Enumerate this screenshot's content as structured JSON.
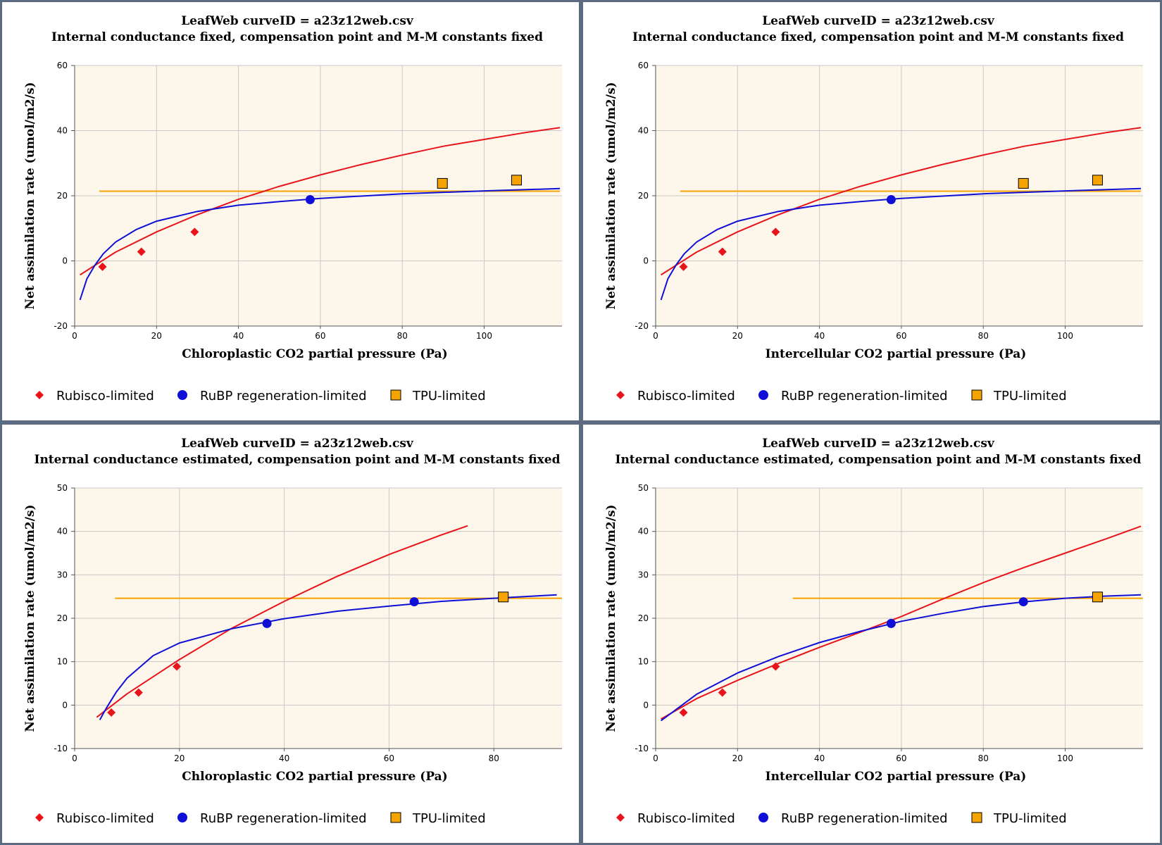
{
  "legend": [
    "Rubisco-limited",
    "RuBP regeneration-limited",
    "TPU-limited"
  ],
  "colors": {
    "rubisco": "#e8141b",
    "rubp": "#0f0fd6",
    "tpu": "#f5a300",
    "plot_bg": "#fdf6ea",
    "frame": "#5b6b82"
  },
  "chart_data": [
    {
      "type": "scatter",
      "title": "LeafWeb curveID = a23z12web.csv",
      "subtitle": "Internal conductance fixed, compensation point and M-M constants fixed",
      "xlabel": "Chloroplastic CO2 partial pressure (Pa)",
      "ylabel": "Net assimilation rate (umol/m2/s)",
      "xlim": [
        0,
        119
      ],
      "ylim": [
        -20,
        60
      ],
      "xticks": [
        0,
        20,
        40,
        60,
        80,
        100
      ],
      "yticks": [
        -20,
        0,
        20,
        40,
        60
      ],
      "grid": true,
      "legend_position": "bottom",
      "points": {
        "rubisco": [
          [
            6.8,
            -1.8
          ],
          [
            16.3,
            2.8
          ],
          [
            29.3,
            8.9
          ]
        ],
        "rubp": [
          [
            57.5,
            18.8
          ]
        ],
        "tpu": [
          [
            89.8,
            23.8
          ],
          [
            107.9,
            24.8
          ]
        ]
      },
      "lines": {
        "rubisco": [
          [
            1.3,
            -4.3
          ],
          [
            10,
            2.7
          ],
          [
            20,
            8.9
          ],
          [
            30,
            14.2
          ],
          [
            40,
            18.9
          ],
          [
            50,
            22.9
          ],
          [
            60,
            26.4
          ],
          [
            70,
            29.6
          ],
          [
            80,
            32.5
          ],
          [
            90,
            35.2
          ],
          [
            100,
            37.3
          ],
          [
            110,
            39.4
          ],
          [
            118.5,
            40.9
          ]
        ],
        "rubp": [
          [
            1.3,
            -12
          ],
          [
            3,
            -5.5
          ],
          [
            5,
            -1.2
          ],
          [
            7,
            2.2
          ],
          [
            10,
            5.8
          ],
          [
            15,
            9.6
          ],
          [
            20,
            12.2
          ],
          [
            30,
            15.2
          ],
          [
            40,
            17.1
          ],
          [
            50,
            18.2
          ],
          [
            60,
            19.2
          ],
          [
            80,
            20.6
          ],
          [
            100,
            21.5
          ],
          [
            118.5,
            22.2
          ]
        ],
        "tpu": [
          [
            6,
            21.4
          ],
          [
            118.5,
            21.4
          ]
        ]
      }
    },
    {
      "type": "scatter",
      "title": "LeafWeb curveID = a23z12web.csv",
      "subtitle": "Internal conductance fixed, compensation point and M-M constants fixed",
      "xlabel": "Intercellular CO2 partial pressure (Pa)",
      "ylabel": "Net assimilation rate (umol/m2/s)",
      "xlim": [
        0,
        119
      ],
      "ylim": [
        -20,
        60
      ],
      "xticks": [
        0,
        20,
        40,
        60,
        80,
        100
      ],
      "yticks": [
        -20,
        0,
        20,
        40,
        60
      ],
      "grid": true,
      "legend_position": "bottom",
      "points": {
        "rubisco": [
          [
            6.8,
            -1.8
          ],
          [
            16.3,
            2.8
          ],
          [
            29.3,
            8.9
          ]
        ],
        "rubp": [
          [
            57.5,
            18.8
          ]
        ],
        "tpu": [
          [
            89.8,
            23.8
          ],
          [
            107.9,
            24.8
          ]
        ]
      },
      "lines": {
        "rubisco": [
          [
            1.3,
            -4.3
          ],
          [
            10,
            2.7
          ],
          [
            20,
            8.9
          ],
          [
            30,
            14.2
          ],
          [
            40,
            18.9
          ],
          [
            50,
            22.9
          ],
          [
            60,
            26.4
          ],
          [
            70,
            29.6
          ],
          [
            80,
            32.5
          ],
          [
            90,
            35.2
          ],
          [
            100,
            37.3
          ],
          [
            110,
            39.4
          ],
          [
            118.5,
            40.9
          ]
        ],
        "rubp": [
          [
            1.3,
            -12
          ],
          [
            3,
            -5.5
          ],
          [
            5,
            -1.2
          ],
          [
            7,
            2.2
          ],
          [
            10,
            5.8
          ],
          [
            15,
            9.6
          ],
          [
            20,
            12.2
          ],
          [
            30,
            15.2
          ],
          [
            40,
            17.1
          ],
          [
            50,
            18.2
          ],
          [
            60,
            19.2
          ],
          [
            80,
            20.6
          ],
          [
            100,
            21.5
          ],
          [
            118.5,
            22.2
          ]
        ],
        "tpu": [
          [
            6,
            21.4
          ],
          [
            118.5,
            21.4
          ]
        ]
      }
    },
    {
      "type": "scatter",
      "title": "LeafWeb curveID = a23z12web.csv",
      "subtitle": "Internal conductance estimated, compensation point and M-M constants fixed",
      "xlabel": "Chloroplastic CO2 partial pressure (Pa)",
      "ylabel": "Net assimilation rate (umol/m2/s)",
      "xlim": [
        0,
        93
      ],
      "ylim": [
        -10,
        50
      ],
      "xticks": [
        0,
        20,
        40,
        60,
        80
      ],
      "yticks": [
        -10,
        0,
        10,
        20,
        30,
        40,
        50
      ],
      "grid": true,
      "legend_position": "bottom",
      "points": {
        "rubisco": [
          [
            7,
            -1.7
          ],
          [
            12.2,
            2.9
          ],
          [
            19.5,
            8.9
          ]
        ],
        "rubp": [
          [
            36.7,
            18.8
          ],
          [
            64.8,
            23.8
          ]
        ],
        "tpu": [
          [
            81.8,
            24.9
          ]
        ]
      },
      "lines": {
        "rubisco": [
          [
            4.2,
            -2.8
          ],
          [
            10,
            2.6
          ],
          [
            20,
            10.5
          ],
          [
            30,
            17.7
          ],
          [
            40,
            23.9
          ],
          [
            50,
            29.6
          ],
          [
            60,
            34.7
          ],
          [
            70,
            39.2
          ],
          [
            75,
            41.3
          ]
        ],
        "rubp": [
          [
            4.8,
            -3.4
          ],
          [
            6,
            -0.8
          ],
          [
            8,
            3.1
          ],
          [
            10,
            6.2
          ],
          [
            15,
            11.4
          ],
          [
            20,
            14.3
          ],
          [
            30,
            17.6
          ],
          [
            40,
            19.9
          ],
          [
            50,
            21.6
          ],
          [
            60,
            22.8
          ],
          [
            70,
            23.9
          ],
          [
            80,
            24.6
          ],
          [
            92,
            25.4
          ]
        ],
        "tpu": [
          [
            7.7,
            24.6
          ],
          [
            93,
            24.6
          ]
        ]
      }
    },
    {
      "type": "scatter",
      "title": "LeafWeb curveID = a23z12web.csv",
      "subtitle": "Internal conductance estimated, compensation point and M-M constants fixed",
      "xlabel": "Intercellular CO2 partial pressure (Pa)",
      "ylabel": "Net assimilation rate (umol/m2/s)",
      "xlim": [
        0,
        119
      ],
      "ylim": [
        -10,
        50
      ],
      "xticks": [
        0,
        20,
        40,
        60,
        80,
        100
      ],
      "yticks": [
        -10,
        0,
        10,
        20,
        30,
        40,
        50
      ],
      "grid": true,
      "legend_position": "bottom",
      "points": {
        "rubisco": [
          [
            6.8,
            -1.7
          ],
          [
            16.3,
            2.9
          ],
          [
            29.3,
            8.9
          ]
        ],
        "rubp": [
          [
            57.5,
            18.8
          ],
          [
            89.8,
            23.8
          ]
        ],
        "tpu": [
          [
            107.9,
            24.9
          ]
        ]
      },
      "lines": {
        "rubisco": [
          [
            1.3,
            -3.2
          ],
          [
            10,
            1.5
          ],
          [
            20,
            5.7
          ],
          [
            30,
            9.6
          ],
          [
            40,
            13.3
          ],
          [
            50,
            16.8
          ],
          [
            60,
            20.4
          ],
          [
            70,
            24.4
          ],
          [
            80,
            28.2
          ],
          [
            90,
            31.7
          ],
          [
            100,
            35.0
          ],
          [
            110,
            38.3
          ],
          [
            118.5,
            41.2
          ]
        ],
        "rubp": [
          [
            1.3,
            -3.6
          ],
          [
            10,
            2.5
          ],
          [
            20,
            7.4
          ],
          [
            30,
            11.2
          ],
          [
            40,
            14.4
          ],
          [
            50,
            17.0
          ],
          [
            60,
            19.3
          ],
          [
            70,
            21.1
          ],
          [
            80,
            22.7
          ],
          [
            90,
            23.8
          ],
          [
            100,
            24.6
          ],
          [
            110,
            25.1
          ],
          [
            118.5,
            25.4
          ]
        ],
        "tpu": [
          [
            33.5,
            24.6
          ],
          [
            119,
            24.6
          ]
        ]
      }
    }
  ]
}
